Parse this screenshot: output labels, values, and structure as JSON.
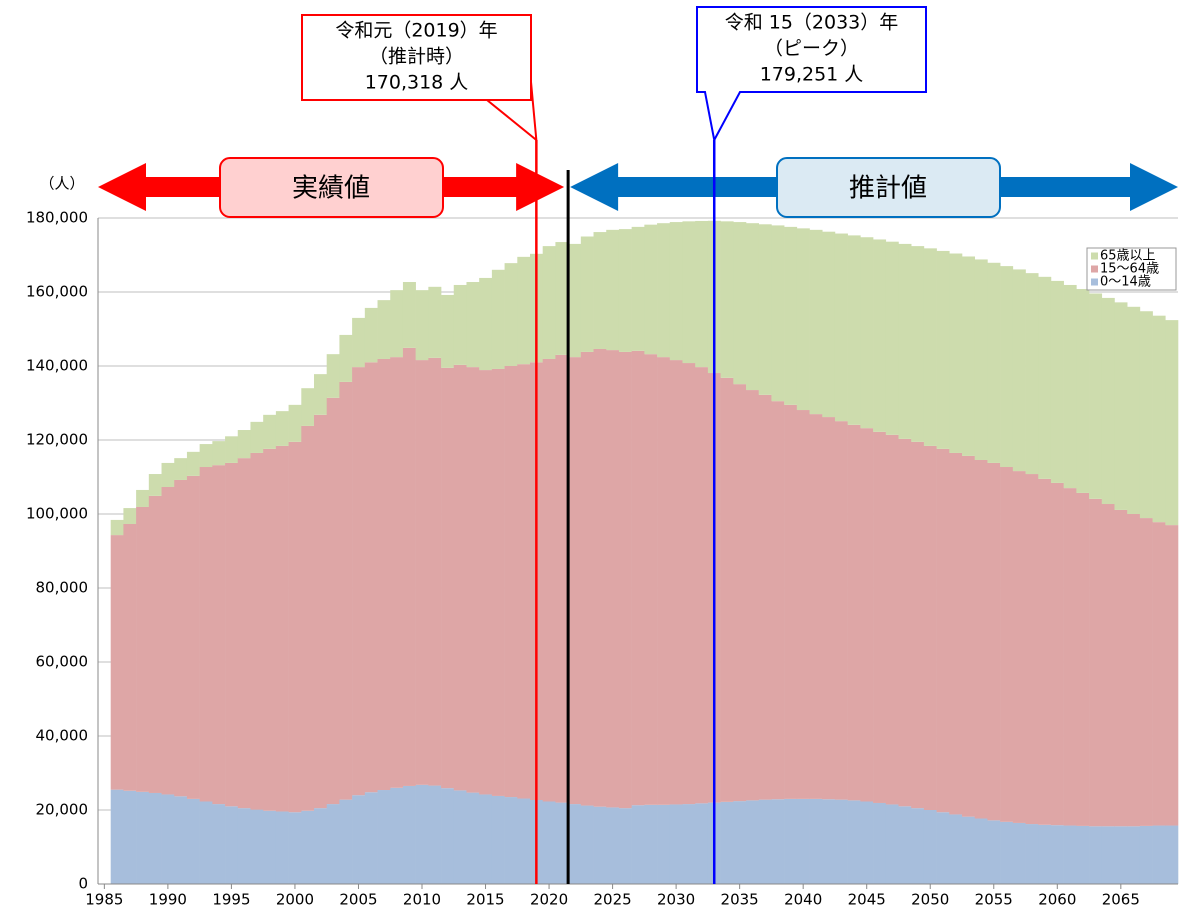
{
  "chart_data": {
    "type": "bar",
    "stacked": true,
    "y_unit_label": "（人）",
    "x": [
      1986,
      1987,
      1988,
      1989,
      1990,
      1991,
      1992,
      1993,
      1994,
      1995,
      1996,
      1997,
      1998,
      1999,
      2000,
      2001,
      2002,
      2003,
      2004,
      2005,
      2006,
      2007,
      2008,
      2009,
      2010,
      2011,
      2012,
      2013,
      2014,
      2015,
      2016,
      2017,
      2018,
      2019,
      2020,
      2021,
      2022,
      2023,
      2024,
      2025,
      2026,
      2027,
      2028,
      2029,
      2030,
      2031,
      2032,
      2033,
      2034,
      2035,
      2036,
      2037,
      2038,
      2039,
      2040,
      2041,
      2042,
      2043,
      2044,
      2045,
      2046,
      2047,
      2048,
      2049,
      2050,
      2051,
      2052,
      2053,
      2054,
      2055,
      2056,
      2057,
      2058,
      2059,
      2060,
      2061,
      2062,
      2063,
      2064,
      2065,
      2066,
      2067,
      2068,
      2069
    ],
    "xlim": [
      1984.5,
      2069.5
    ],
    "xticks": [
      1985,
      1990,
      1995,
      2000,
      2005,
      2010,
      2015,
      2020,
      2025,
      2030,
      2035,
      2040,
      2045,
      2050,
      2055,
      2060,
      2065
    ],
    "ylim": [
      0,
      180000
    ],
    "yticks": [
      0,
      {
        "value": 20000,
        "label": "20,000"
      },
      {
        "value": 40000,
        "label": "40,000"
      },
      {
        "value": 60000,
        "label": "60,000"
      },
      {
        "value": 80000,
        "label": "80,000"
      },
      {
        "value": 100000,
        "label": "100,000"
      },
      {
        "value": 120000,
        "label": "120,000"
      },
      {
        "value": 140000,
        "label": "140,000"
      },
      {
        "value": 160000,
        "label": "160,000"
      },
      {
        "value": 180000,
        "label": "180,000"
      }
    ],
    "grid": true,
    "legend": "upper right",
    "series": [
      {
        "name": "0～14歳",
        "color": "#a7bedc",
        "values": [
          25500,
          25200,
          24900,
          24600,
          24200,
          23700,
          23000,
          22300,
          21600,
          21000,
          20500,
          20100,
          19800,
          19600,
          19400,
          19800,
          20500,
          21600,
          22800,
          24000,
          24800,
          25400,
          26000,
          26500,
          26800,
          26600,
          25900,
          25300,
          24700,
          24200,
          23800,
          23500,
          23100,
          22700,
          22300,
          22000,
          21600,
          21200,
          20900,
          20700,
          20500,
          21300,
          21400,
          21400,
          21500,
          21600,
          21800,
          22000,
          22200,
          22400,
          22600,
          22800,
          22900,
          23000,
          23000,
          23000,
          22900,
          22800,
          22600,
          22300,
          21900,
          21500,
          21000,
          20500,
          20000,
          19400,
          18800,
          18200,
          17700,
          17200,
          16800,
          16500,
          16200,
          16000,
          15900,
          15800,
          15700,
          15600,
          15600,
          15600,
          15600,
          15700,
          15800,
          15800
        ]
      },
      {
        "name": "15～64歳",
        "color": "#dea6a6",
        "values": [
          68800,
          72100,
          77000,
          80300,
          83100,
          85500,
          87300,
          90400,
          91600,
          92800,
          94600,
          96400,
          97800,
          98800,
          100100,
          104000,
          106300,
          109800,
          112900,
          115700,
          116200,
          116500,
          116400,
          118400,
          114800,
          115600,
          113600,
          115000,
          115000,
          114700,
          115400,
          116500,
          117400,
          118300,
          119600,
          121000,
          120800,
          122600,
          123700,
          123600,
          123300,
          122800,
          121800,
          121000,
          120100,
          119200,
          117900,
          116100,
          114600,
          112700,
          110900,
          109400,
          107600,
          106500,
          105100,
          104000,
          103300,
          102300,
          101500,
          100900,
          100300,
          99900,
          99300,
          99000,
          98400,
          98200,
          97700,
          97500,
          96900,
          96600,
          95900,
          95100,
          94600,
          93500,
          92500,
          91200,
          90000,
          88500,
          87100,
          85500,
          84400,
          83200,
          82000,
          81200
        ]
      },
      {
        "name": "65歳以上",
        "color": "#cddcad",
        "values": [
          4100,
          4300,
          4600,
          5900,
          6500,
          5900,
          6500,
          6200,
          6500,
          7200,
          7600,
          8400,
          9200,
          9400,
          10000,
          10200,
          11000,
          11800,
          12700,
          13300,
          14700,
          15900,
          18100,
          17800,
          18900,
          19200,
          19700,
          21600,
          23000,
          24900,
          26800,
          27800,
          29000,
          29318,
          30500,
          30500,
          30600,
          31200,
          31600,
          32500,
          33200,
          33500,
          35000,
          36200,
          37300,
          38300,
          39500,
          41151,
          42300,
          43800,
          45100,
          46100,
          47500,
          48100,
          49100,
          49800,
          50100,
          50700,
          51200,
          51600,
          52000,
          52200,
          52700,
          52900,
          53400,
          53500,
          53900,
          53900,
          54200,
          54100,
          54300,
          54500,
          54300,
          54600,
          54600,
          54900,
          55100,
          55500,
          55700,
          56100,
          56000,
          55900,
          55800,
          55400
        ]
      }
    ],
    "annotations": [
      {
        "lines": [
          "令和元（2019）年",
          "（推計時）",
          "170,318 人"
        ],
        "x": 2019,
        "color": "#ff0000"
      },
      {
        "lines": [
          "令和 15（2033）年",
          "（ピーク）",
          "179,251 人"
        ],
        "x": 2033,
        "color": "#0000ff"
      }
    ],
    "divider_x": 2021.5,
    "periods": [
      {
        "label": "実績値",
        "color": "#ff0000",
        "box": "#ffd0d0"
      },
      {
        "label": "推計値",
        "color": "#0070c0",
        "box": "#dbeaf3"
      }
    ]
  }
}
